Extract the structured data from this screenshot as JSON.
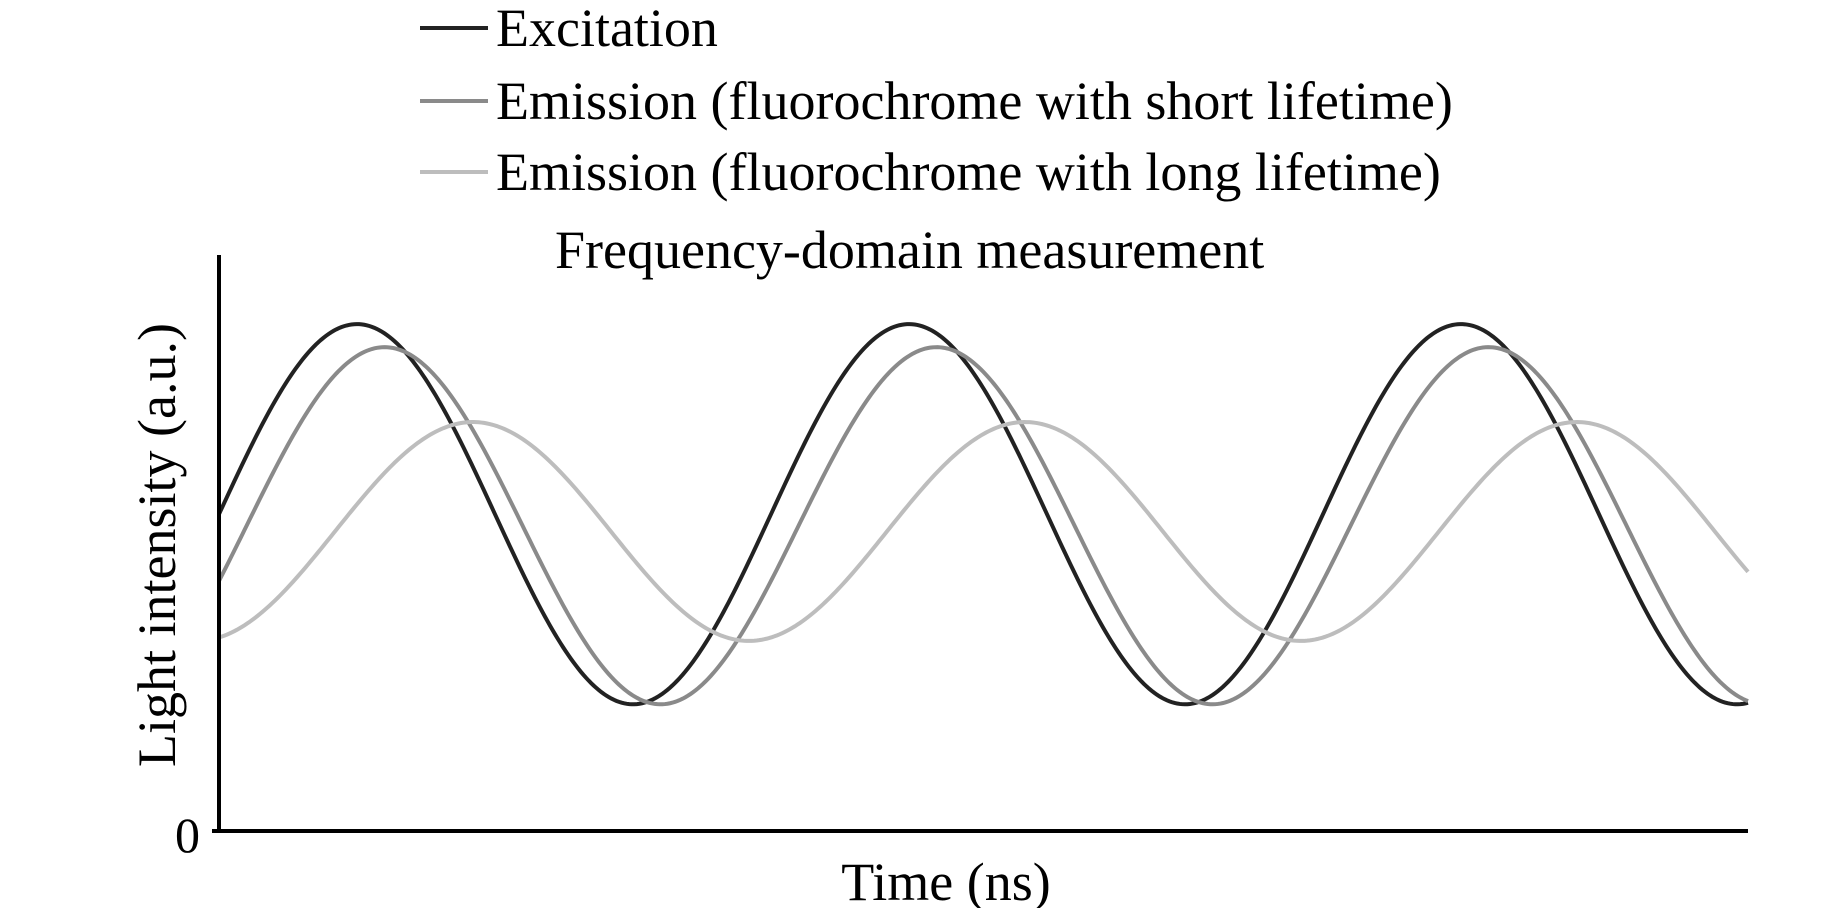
{
  "chart_data": {
    "type": "line",
    "title": "Frequency-domain measurement",
    "xlabel": "Time (ns)",
    "ylabel": "Light intensity (a.u.)",
    "y_tick_labels": [
      "0"
    ],
    "x_tick_labels": [],
    "grid": false,
    "legend_position": "top",
    "x_range": [
      0,
      2.77
    ],
    "y_range": [
      0,
      1
    ],
    "series": [
      {
        "name": "Excitation",
        "color": "#222222",
        "offset": 0.55,
        "amplitude": 0.33,
        "period": 1.0,
        "peak_x": 0.25
      },
      {
        "name": "Emission (fluorochrome with short lifetime)",
        "color": "#8a8a8a",
        "offset": 0.53,
        "amplitude": 0.31,
        "period": 1.0,
        "peak_x": 0.3
      },
      {
        "name": "Emission (fluorochrome with long lifetime)",
        "color": "#bdbdbd",
        "offset": 0.52,
        "amplitude": 0.19,
        "period": 1.0,
        "peak_x": 0.46
      }
    ]
  }
}
